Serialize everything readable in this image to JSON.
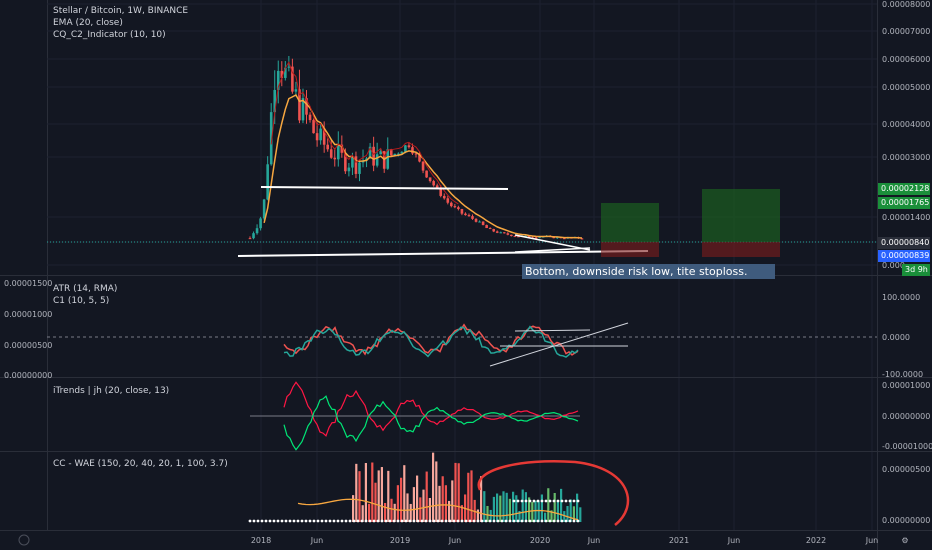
{
  "legend": {
    "symbol": "Stellar / Bitcoin, 1W, BINANCE",
    "ema": "EMA (20, close)",
    "cq": "CQ_C2_Indicator (10, 10)",
    "atr": "ATR (14, RMA)",
    "c1": "C1 (10, 5, 5)",
    "itrends": "iTrends | jh (20, close, 13)",
    "wae": "CC - WAE (150, 20, 40, 20, 1, 100, 3.7)"
  },
  "annotation": "Bottom, downside risk low, tite stoploss.",
  "price_tags": {
    "tp1": "0.00002128",
    "tp2": "0.00001765",
    "last": "0.00000840",
    "prev": "0.00000839",
    "countdown": "3d 9h"
  },
  "corner_icons": {
    "left": "settings-z-icon",
    "right": "settings-gear-icon"
  },
  "colors": {
    "bg": "#131722",
    "up": "#26a69a",
    "down": "#ef5350",
    "ema": "#f7a740",
    "green_tag": "#1a8f3a",
    "blue_tag": "#2962ff"
  },
  "chart_data": [
    {
      "type": "candlestick",
      "title": "Stellar / Bitcoin, 1W, BINANCE",
      "ylim": [
        0,
        8e-05
      ],
      "y_ticks": [
        "0.00008000",
        "0.00007000",
        "0.00006000",
        "0.00005000",
        "0.00004000",
        "0.00003000",
        "0.00001400",
        "0.00000840",
        "0.000"
      ],
      "x_ticks": [
        "2018",
        "Jun",
        "2019",
        "Jun",
        "2020",
        "Jun",
        "2021",
        "Jun",
        "2022",
        "Jun"
      ],
      "price_path": [
        8.4e-06,
        1.65e-05,
        6.8e-05,
        5.5e-05,
        4.8e-05,
        4e-05,
        3.6e-05,
        3.3e-05,
        3.2e-05,
        3.4e-05,
        3.3e-05,
        3.5e-05,
        3.8e-05,
        3e-05,
        2.4e-05,
        1.9e-05,
        1.6e-05,
        1.4e-05,
        1.1e-05,
        9.8e-06,
        9.1e-06,
        8.8e-06,
        8.9e-06,
        8.6e-06,
        8.4e-06,
        8.4e-06
      ]
    },
    {
      "type": "line",
      "title": "ATR (14, RMA) / C1 (10, 5, 5)",
      "y_ticks": [
        "0.00001500",
        "0.00001000",
        "0.00000500",
        "0.00000000"
      ],
      "y_ticks_right": [
        "100.0000",
        "0.0000",
        "-100.0000"
      ]
    },
    {
      "type": "line",
      "title": "iTrends | jh (20, close, 13)",
      "y_ticks_right": [
        "0.00001000",
        "0.00000000",
        "-0.00001000"
      ]
    },
    {
      "type": "bar",
      "title": "CC - WAE (150, 20, 40, 20, 1, 100, 3.7)",
      "y_ticks_right": [
        "0.00000500",
        "0.00000000"
      ]
    }
  ]
}
